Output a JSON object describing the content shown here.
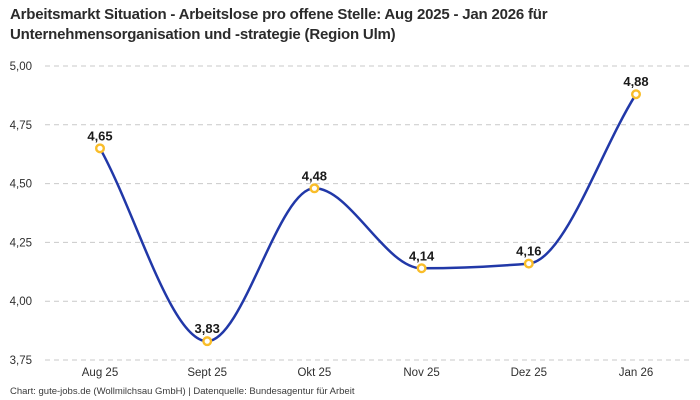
{
  "title": "Arbeitsmarkt Situation - Arbeitslose pro offene Stelle: Aug 2025 - Jan 2026 für Unternehmensorganisation und -strategie (Region Ulm)",
  "footer": "Chart: gute-jobs.de (Wollmilchsau GmbH) | Datenquelle: Bundesagentur für Arbeit",
  "chart_data": {
    "type": "line",
    "title": "Arbeitsmarkt Situation - Arbeitslose pro offene Stelle: Aug 2025 - Jan 2026 für Unternehmensorganisation und -strategie (Region Ulm)",
    "categories": [
      "Aug 25",
      "Sept 25",
      "Okt 25",
      "Nov 25",
      "Dez 25",
      "Jan 26"
    ],
    "values": [
      4.65,
      3.83,
      4.48,
      4.14,
      4.16,
      4.88
    ],
    "point_labels": [
      "4,65",
      "3,83",
      "4,48",
      "4,14",
      "4,16",
      "4,88"
    ],
    "xlabel": "",
    "ylabel": "",
    "ylim": [
      3.75,
      5.0
    ],
    "yticks": [
      3.75,
      4.0,
      4.25,
      4.5,
      4.75,
      5.0
    ],
    "ytick_labels": [
      "3,75",
      "4,00",
      "4,25",
      "4,50",
      "4,75",
      "5,00"
    ],
    "grid": "horizontal-dashed",
    "legend": "none",
    "curve": "monotone-smooth",
    "colors": {
      "line": "#2138a8",
      "marker_ring": "#f9bd2a",
      "marker_fill": "#ffffff",
      "gridline": "#c9c9c9",
      "tick_text": "#2f2f2f",
      "point_label_text": "#1a1a1a",
      "title_text": "#2b2b2b",
      "background": "#ffffff"
    }
  }
}
